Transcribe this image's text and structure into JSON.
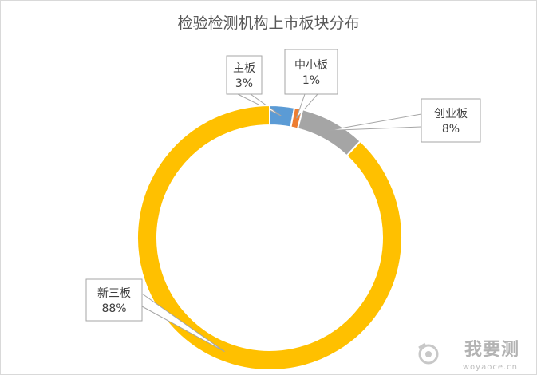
{
  "chart_data": {
    "type": "pie",
    "variant": "donut",
    "title": "检验检测机构上市板块分布",
    "slices": [
      {
        "name": "主板",
        "value": 3,
        "label": "3%",
        "color": "#5b9bd5"
      },
      {
        "name": "中小板",
        "value": 1,
        "label": "1%",
        "color": "#ed7d31"
      },
      {
        "name": "创业板",
        "value": 8,
        "label": "8%",
        "color": "#a5a5a5"
      },
      {
        "name": "新三板",
        "value": 88,
        "label": "88%",
        "color": "#ffc000"
      }
    ],
    "legend": "none"
  },
  "watermark": {
    "text": "我要测",
    "sub": "woyaoce.cn",
    "icon": "camera-icon"
  }
}
